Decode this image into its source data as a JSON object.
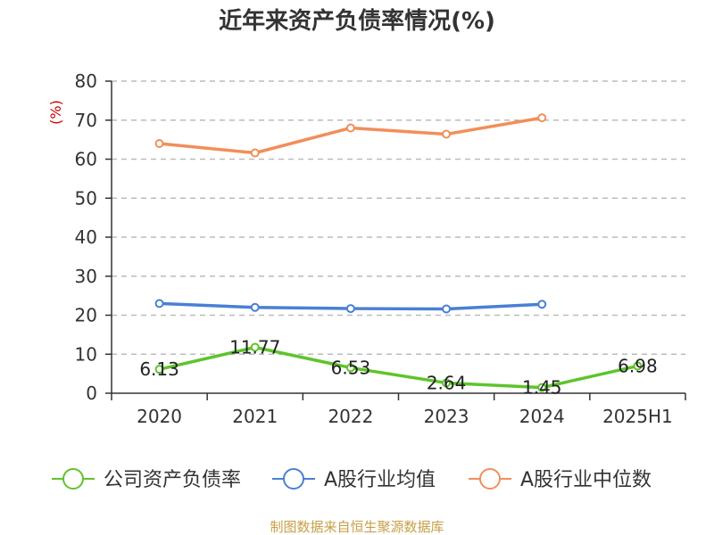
{
  "chart_data": {
    "type": "line",
    "title": "近年来资产负债率情况(%)",
    "ylabel": "(%)",
    "xlabel": "",
    "categories": [
      "2020",
      "2021",
      "2022",
      "2023",
      "2024",
      "2025H1"
    ],
    "ylim": [
      0,
      80
    ],
    "yticks": [
      0,
      10,
      20,
      30,
      40,
      50,
      60,
      70,
      80
    ],
    "grid": true,
    "legend_position": "bottom",
    "series": [
      {
        "name": "公司资产负债率",
        "color": "#5ec42b",
        "values": [
          6.13,
          11.77,
          6.53,
          2.64,
          1.45,
          6.98
        ],
        "labels": [
          "6.13",
          "11.77",
          "6.53",
          "2.64",
          "1.45",
          "6.98"
        ]
      },
      {
        "name": "A股行业均值",
        "color": "#4a7fd6",
        "values": [
          23.0,
          22.0,
          21.7,
          21.6,
          22.8,
          null
        ]
      },
      {
        "name": "A股行业中位数",
        "color": "#f28e5a",
        "values": [
          64.0,
          61.6,
          68.0,
          66.4,
          70.6,
          null
        ]
      }
    ],
    "source": "制图数据来自恒生聚源数据库",
    "colors": {
      "ylabel": "#cc0000",
      "source": "#c8a046",
      "axis": "#333333",
      "grid": "#bbbbbb"
    }
  }
}
